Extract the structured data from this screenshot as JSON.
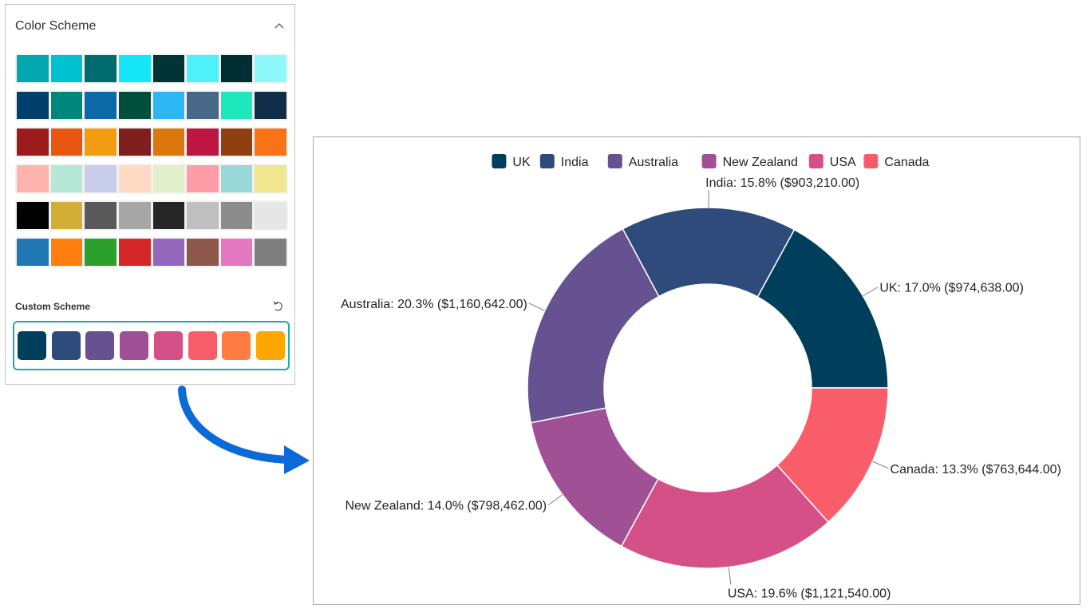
{
  "panel": {
    "title": "Color Scheme",
    "collapse_icon": "chevron-up-icon",
    "palettes": [
      [
        "#02a7af",
        "#00c1cf",
        "#006b6f",
        "#14e8f8",
        "#003437",
        "#4df1fa",
        "#002f33",
        "#8ef8fb"
      ],
      [
        "#003f6b",
        "#00877b",
        "#0b69a8",
        "#004f3c",
        "#2db6f4",
        "#486887",
        "#1de8bd",
        "#0f2d46"
      ],
      [
        "#9c1b1b",
        "#e8560f",
        "#f39c11",
        "#801d1d",
        "#dc770b",
        "#be1640",
        "#8f400f",
        "#f87316"
      ],
      [
        "#ffb3ad",
        "#b5e9d6",
        "#c7cdea",
        "#ffd9c2",
        "#e3f0cc",
        "#ff9ca5",
        "#98d8d8",
        "#f0e68e"
      ],
      [
        "#000000",
        "#d4af37",
        "#595959",
        "#a6a6a6",
        "#262626",
        "#bfbfbf",
        "#8c8c8c",
        "#e6e6e6"
      ],
      [
        "#1f77b4",
        "#ff7f0e",
        "#2ca02c",
        "#d62728",
        "#9467bd",
        "#8c564b",
        "#e377c2",
        "#7f7f7f"
      ]
    ],
    "custom_title": "Custom Scheme",
    "reset_icon": "undo-icon",
    "custom_colors": [
      "#003f5c",
      "#2f4b7c",
      "#665191",
      "#a05195",
      "#d45087",
      "#f95d6a",
      "#ff7c43",
      "#ffa600"
    ]
  },
  "arrow_icon": "curved-arrow-icon",
  "chart_data": {
    "type": "pie",
    "donut": true,
    "legend_position": "top-center",
    "legend": [
      "UK",
      "India",
      "Australia",
      "New Zealand",
      "USA",
      "Canada"
    ],
    "slices": [
      {
        "name": "UK",
        "value": 974638,
        "percent": 17.0,
        "color": "#003f5c",
        "label": "UK: 17.0% ($974,638.00)"
      },
      {
        "name": "India",
        "value": 903210,
        "percent": 15.8,
        "color": "#2f4b7c",
        "label": "India: 15.8% ($903,210.00)"
      },
      {
        "name": "Australia",
        "value": 1160642,
        "percent": 20.3,
        "color": "#665191",
        "label": "Australia: 20.3% ($1,160,642.00)"
      },
      {
        "name": "New Zealand",
        "value": 798462,
        "percent": 14.0,
        "color": "#a05195",
        "label": "New Zealand: 14.0% ($798,462.00)"
      },
      {
        "name": "USA",
        "value": 1121540,
        "percent": 19.6,
        "color": "#d45087",
        "label": "USA: 19.6% ($1,121,540.00)"
      },
      {
        "name": "Canada",
        "value": 763644,
        "percent": 13.3,
        "color": "#f95d6a",
        "label": "Canada: 13.3% ($763,644.00)"
      }
    ]
  }
}
